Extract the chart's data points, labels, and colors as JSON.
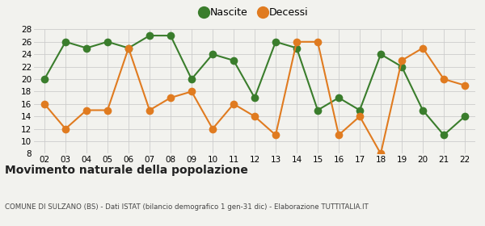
{
  "years": [
    2,
    3,
    4,
    5,
    6,
    7,
    8,
    9,
    10,
    11,
    12,
    13,
    14,
    15,
    16,
    17,
    18,
    19,
    20,
    21,
    22
  ],
  "nascite": [
    20,
    26,
    25,
    26,
    25,
    27,
    27,
    20,
    24,
    23,
    17,
    26,
    25,
    15,
    17,
    15,
    24,
    22,
    15,
    11,
    14
  ],
  "decessi": [
    16,
    12,
    15,
    15,
    25,
    15,
    17,
    18,
    12,
    16,
    14,
    11,
    26,
    26,
    11,
    14,
    8,
    23,
    25,
    20,
    19
  ],
  "nascite_color": "#3a7d2c",
  "decessi_color": "#e07b20",
  "background_color": "#f2f2ee",
  "grid_color": "#cccccc",
  "ylim": [
    8,
    28
  ],
  "yticks": [
    8,
    10,
    12,
    14,
    16,
    18,
    20,
    22,
    24,
    26,
    28
  ],
  "title": "Movimento naturale della popolazione",
  "subtitle": "COMUNE DI SULZANO (BS) - Dati ISTAT (bilancio demografico 1 gen-31 dic) - Elaborazione TUTTITALIA.IT",
  "legend_nascite": "Nascite",
  "legend_decessi": "Decessi",
  "marker_size": 7,
  "line_width": 1.5
}
